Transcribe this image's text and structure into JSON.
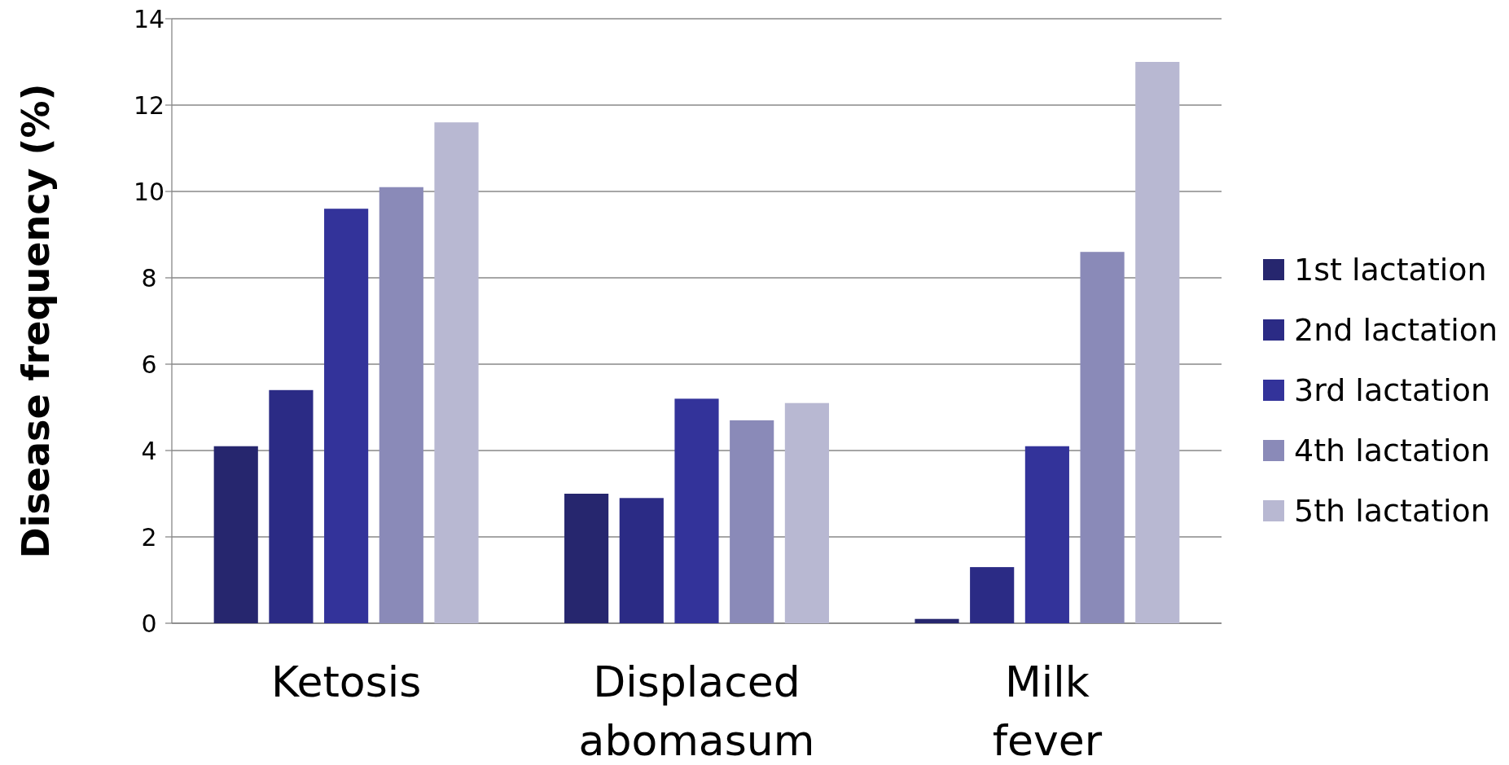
{
  "chart_data": {
    "type": "bar",
    "ylabel": "Disease frequency (%)",
    "categories": [
      "Ketosis",
      "Displaced abomasum",
      "Milk fever"
    ],
    "series": [
      {
        "name": "1st lactation",
        "color": "#26266e",
        "values": [
          4.1,
          3.0,
          0.1
        ]
      },
      {
        "name": "2nd lactation",
        "color": "#2b2b85",
        "values": [
          5.4,
          2.9,
          1.3
        ]
      },
      {
        "name": "3rd lactation",
        "color": "#33339a",
        "values": [
          9.6,
          5.2,
          4.1
        ]
      },
      {
        "name": "4th lactation",
        "color": "#8a8ab8",
        "values": [
          10.1,
          4.7,
          8.6
        ]
      },
      {
        "name": "5th lactation",
        "color": "#b8b8d2",
        "values": [
          11.6,
          5.1,
          13.0
        ]
      }
    ],
    "ylim": [
      0,
      14
    ],
    "yticks": [
      0,
      2,
      4,
      6,
      8,
      10,
      12,
      14
    ],
    "grid": "y",
    "legend": "right"
  }
}
